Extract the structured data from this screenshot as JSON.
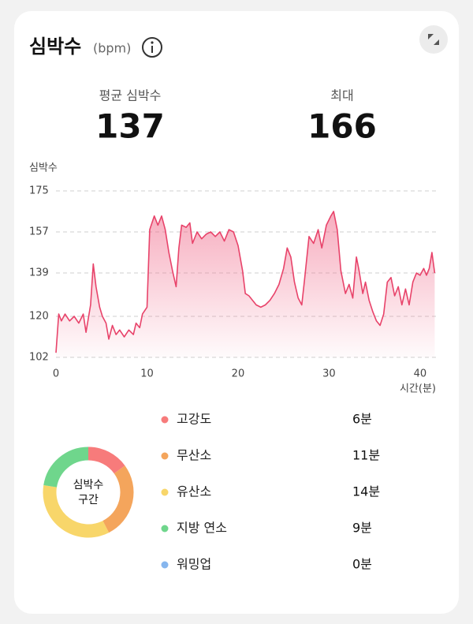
{
  "header": {
    "title": "심박수",
    "unit": "(bpm)"
  },
  "stats": [
    {
      "label": "평균 심박수",
      "value": 137
    },
    {
      "label": "최대",
      "value": 166
    }
  ],
  "chart_data": [
    {
      "type": "area",
      "y_label": "심박수",
      "x_label": "시간(분)",
      "color": "#e8436a",
      "xlim": [
        0,
        42
      ],
      "xticks": [
        0,
        10,
        20,
        30,
        40
      ],
      "ylim": [
        102,
        175
      ],
      "yticks": [
        102,
        120,
        139,
        157,
        175
      ],
      "grid": true,
      "x": [
        0,
        0.3,
        0.6,
        1,
        1.5,
        2,
        2.5,
        3,
        3.3,
        3.8,
        4.1,
        4.4,
        4.8,
        5.1,
        5.5,
        5.8,
        6.2,
        6.6,
        7,
        7.5,
        8,
        8.5,
        8.8,
        9.2,
        9.5,
        10,
        10.3,
        10.8,
        11.2,
        11.6,
        12,
        12.4,
        12.8,
        13.2,
        13.5,
        13.8,
        14.3,
        14.7,
        15,
        15.5,
        16,
        16.5,
        17,
        17.5,
        18,
        18.5,
        19,
        19.5,
        20,
        20.5,
        20.8,
        21.2,
        21.6,
        22,
        22.5,
        23,
        23.5,
        24,
        24.5,
        25,
        25.4,
        25.8,
        26.2,
        26.6,
        27,
        27.3,
        27.8,
        28.3,
        28.8,
        29.2,
        29.7,
        30.2,
        30.5,
        30.9,
        31.3,
        31.8,
        32.2,
        32.6,
        33,
        33.3,
        33.7,
        34,
        34.4,
        34.8,
        35.2,
        35.6,
        36,
        36.4,
        36.8,
        37.2,
        37.6,
        38,
        38.4,
        38.8,
        39.2,
        39.6,
        40,
        40.4,
        40.7,
        41,
        41.3,
        41.6
      ],
      "values": [
        104,
        121,
        118,
        121,
        118,
        120,
        117,
        121,
        113,
        125,
        143,
        133,
        124,
        120,
        117,
        110,
        116,
        112,
        114,
        111,
        114,
        112,
        117,
        115,
        121,
        124,
        158,
        164,
        160,
        164,
        158,
        148,
        140,
        133,
        150,
        160,
        159,
        161,
        152,
        157,
        154,
        156,
        157,
        155,
        157,
        153,
        158,
        157,
        151,
        140,
        130,
        129,
        127,
        125,
        124,
        125,
        127,
        130,
        134,
        141,
        150,
        146,
        135,
        128,
        125,
        136,
        155,
        152,
        158,
        150,
        160,
        164,
        166,
        158,
        140,
        130,
        134,
        128,
        146,
        140,
        130,
        135,
        127,
        122,
        118,
        116,
        121,
        135,
        137,
        129,
        133,
        125,
        132,
        125,
        135,
        139,
        138,
        141,
        138,
        141,
        148,
        139
      ]
    },
    {
      "type": "donut",
      "center_label": [
        "심박수",
        "구간"
      ],
      "categories": [
        "고강도",
        "무산소",
        "유산소",
        "지방 연소",
        "워밍업"
      ],
      "colors": [
        "#f77b7b",
        "#f4a55c",
        "#f8d66a",
        "#6fd68c",
        "#86b6ee"
      ],
      "values": [
        6,
        11,
        14,
        9,
        0
      ],
      "value_labels": [
        "6분",
        "11분",
        "14분",
        "9분",
        "0분"
      ]
    }
  ]
}
